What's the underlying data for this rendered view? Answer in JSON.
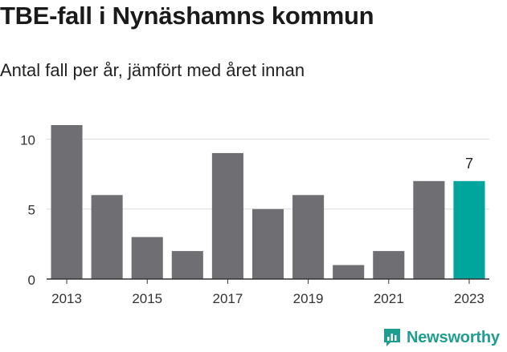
{
  "title": "TBE-fall i Nynäshamns kommun",
  "subtitle": "Antal fall per år, jämfört med året innan",
  "brand": "Newsworthy",
  "colors": {
    "bar": "#6f6e73",
    "highlight": "#00a69c",
    "grid": "#dddddd",
    "axis": "#333333",
    "brand": "#1f9e8f"
  },
  "chart_data": {
    "type": "bar",
    "categories": [
      "2013",
      "2014",
      "2015",
      "2016",
      "2017",
      "2018",
      "2019",
      "2020",
      "2021",
      "2022",
      "2023"
    ],
    "values": [
      11,
      6,
      3,
      2,
      9,
      5,
      6,
      1,
      2,
      7,
      7
    ],
    "x_tick_labels": [
      "2013",
      "2015",
      "2017",
      "2019",
      "2021",
      "2023"
    ],
    "y_ticks": [
      0,
      5,
      10
    ],
    "ylim": [
      0,
      11
    ],
    "highlight_index": 10,
    "data_label": "7",
    "grid": true,
    "legend": "none"
  }
}
